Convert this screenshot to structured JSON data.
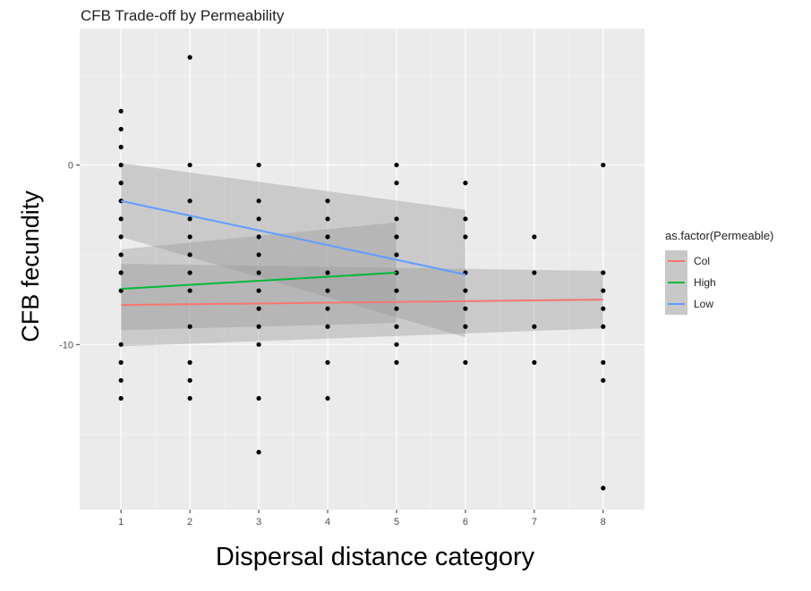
{
  "chart_data": {
    "type": "scatter",
    "title": "CFB Trade-off by Permeability",
    "xlabel": "Dispersal distance category",
    "ylabel": "CFB fecundity",
    "xlim": [
      0.4,
      8.6
    ],
    "ylim": [
      -19.2,
      7.6
    ],
    "x_ticks": [
      1,
      2,
      3,
      4,
      5,
      6,
      7,
      8
    ],
    "y_ticks": [
      0,
      -10
    ],
    "grid": true,
    "legend": {
      "title": "as.factor(Permeable)",
      "position": "right"
    },
    "points": [
      {
        "x": 1,
        "y": 3
      },
      {
        "x": 1,
        "y": 2
      },
      {
        "x": 1,
        "y": 1
      },
      {
        "x": 1,
        "y": 0
      },
      {
        "x": 1,
        "y": -1
      },
      {
        "x": 1,
        "y": -2
      },
      {
        "x": 1,
        "y": -3
      },
      {
        "x": 1,
        "y": -4
      },
      {
        "x": 1,
        "y": -5
      },
      {
        "x": 1,
        "y": -6
      },
      {
        "x": 1,
        "y": -7
      },
      {
        "x": 1,
        "y": -10
      },
      {
        "x": 1,
        "y": -11
      },
      {
        "x": 1,
        "y": -12
      },
      {
        "x": 1,
        "y": -13
      },
      {
        "x": 2,
        "y": 6
      },
      {
        "x": 2,
        "y": 0
      },
      {
        "x": 2,
        "y": -2
      },
      {
        "x": 2,
        "y": -3
      },
      {
        "x": 2,
        "y": -4
      },
      {
        "x": 2,
        "y": -5
      },
      {
        "x": 2,
        "y": -6
      },
      {
        "x": 2,
        "y": -7
      },
      {
        "x": 2,
        "y": -9
      },
      {
        "x": 2,
        "y": -11
      },
      {
        "x": 2,
        "y": -12
      },
      {
        "x": 2,
        "y": -13
      },
      {
        "x": 3,
        "y": 0
      },
      {
        "x": 3,
        "y": -2
      },
      {
        "x": 3,
        "y": -3
      },
      {
        "x": 3,
        "y": -4
      },
      {
        "x": 3,
        "y": -5
      },
      {
        "x": 3,
        "y": -6
      },
      {
        "x": 3,
        "y": -7
      },
      {
        "x": 3,
        "y": -8
      },
      {
        "x": 3,
        "y": -9
      },
      {
        "x": 3,
        "y": -10
      },
      {
        "x": 3,
        "y": -13
      },
      {
        "x": 3,
        "y": -16
      },
      {
        "x": 4,
        "y": -2
      },
      {
        "x": 4,
        "y": -3
      },
      {
        "x": 4,
        "y": -4
      },
      {
        "x": 4,
        "y": -6
      },
      {
        "x": 4,
        "y": -7
      },
      {
        "x": 4,
        "y": -8
      },
      {
        "x": 4,
        "y": -9
      },
      {
        "x": 4,
        "y": -11
      },
      {
        "x": 4,
        "y": -13
      },
      {
        "x": 5,
        "y": 0
      },
      {
        "x": 5,
        "y": -1
      },
      {
        "x": 5,
        "y": -3
      },
      {
        "x": 5,
        "y": -4
      },
      {
        "x": 5,
        "y": -5
      },
      {
        "x": 5,
        "y": -6
      },
      {
        "x": 5,
        "y": -7
      },
      {
        "x": 5,
        "y": -8
      },
      {
        "x": 5,
        "y": -9
      },
      {
        "x": 5,
        "y": -10
      },
      {
        "x": 5,
        "y": -11
      },
      {
        "x": 6,
        "y": -1
      },
      {
        "x": 6,
        "y": -3
      },
      {
        "x": 6,
        "y": -4
      },
      {
        "x": 6,
        "y": -6
      },
      {
        "x": 6,
        "y": -7
      },
      {
        "x": 6,
        "y": -8
      },
      {
        "x": 6,
        "y": -9
      },
      {
        "x": 6,
        "y": -11
      },
      {
        "x": 7,
        "y": -4
      },
      {
        "x": 7,
        "y": -6
      },
      {
        "x": 7,
        "y": -9
      },
      {
        "x": 7,
        "y": -11
      },
      {
        "x": 8,
        "y": 0
      },
      {
        "x": 8,
        "y": -6
      },
      {
        "x": 8,
        "y": -7
      },
      {
        "x": 8,
        "y": -8
      },
      {
        "x": 8,
        "y": -9
      },
      {
        "x": 8,
        "y": -11
      },
      {
        "x": 8,
        "y": -12
      },
      {
        "x": 8,
        "y": -18
      }
    ],
    "series": [
      {
        "name": "Col",
        "color": "#F8766D",
        "x": [
          1,
          8
        ],
        "y": [
          -7.8,
          -7.5
        ],
        "ci_lower": [
          -10.1,
          -9.1
        ],
        "ci_upper": [
          -5.5,
          -5.9
        ]
      },
      {
        "name": "High",
        "color": "#00BA38",
        "x": [
          1,
          5
        ],
        "y": [
          -6.9,
          -6.0
        ],
        "ci_lower": [
          -9.2,
          -8.8
        ],
        "ci_upper": [
          -4.7,
          -3.2
        ]
      },
      {
        "name": "Low",
        "color": "#619CFF",
        "x": [
          1,
          6
        ],
        "y": [
          -2.0,
          -6.1
        ],
        "ci_lower": [
          -4.0,
          -9.6
        ],
        "ci_upper": [
          0.1,
          -2.5
        ]
      }
    ]
  }
}
